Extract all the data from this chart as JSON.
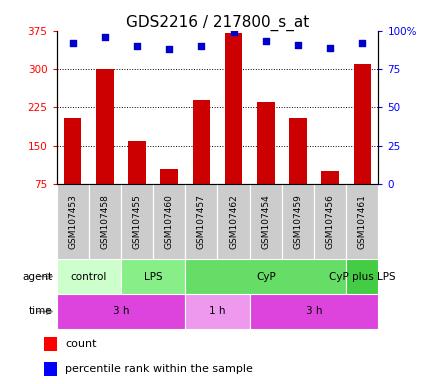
{
  "title": "GDS2216 / 217800_s_at",
  "samples": [
    "GSM107453",
    "GSM107458",
    "GSM107455",
    "GSM107460",
    "GSM107457",
    "GSM107462",
    "GSM107454",
    "GSM107459",
    "GSM107456",
    "GSM107461"
  ],
  "counts": [
    205,
    300,
    160,
    105,
    240,
    370,
    235,
    205,
    100,
    310
  ],
  "percentile_ranks": [
    92,
    96,
    90,
    88,
    90,
    99,
    93,
    91,
    89,
    92
  ],
  "ylim_left": [
    75,
    375
  ],
  "ylim_right": [
    0,
    100
  ],
  "yticks_left": [
    75,
    150,
    225,
    300,
    375
  ],
  "yticks_right": [
    0,
    25,
    50,
    75,
    100
  ],
  "grid_lines": [
    150,
    225,
    300
  ],
  "bar_color": "#cc0000",
  "dot_color": "#0000cc",
  "agent_groups": [
    {
      "label": "control",
      "start": 0,
      "end": 2,
      "color": "#ccffcc"
    },
    {
      "label": "LPS",
      "start": 2,
      "end": 4,
      "color": "#88ee88"
    },
    {
      "label": "CyP",
      "start": 4,
      "end": 9,
      "color": "#66dd66"
    },
    {
      "label": "CyP plus LPS",
      "start": 9,
      "end": 10,
      "color": "#44cc44"
    }
  ],
  "time_groups": [
    {
      "label": "3 h",
      "start": 0,
      "end": 4,
      "color": "#dd44dd"
    },
    {
      "label": "1 h",
      "start": 4,
      "end": 6,
      "color": "#ee99ee"
    },
    {
      "label": "3 h",
      "start": 6,
      "end": 10,
      "color": "#dd44dd"
    }
  ],
  "sample_bg_color": "#cccccc",
  "title_fontsize": 11,
  "tick_fontsize": 7.5,
  "sample_fontsize": 6.5,
  "group_fontsize": 7.5
}
